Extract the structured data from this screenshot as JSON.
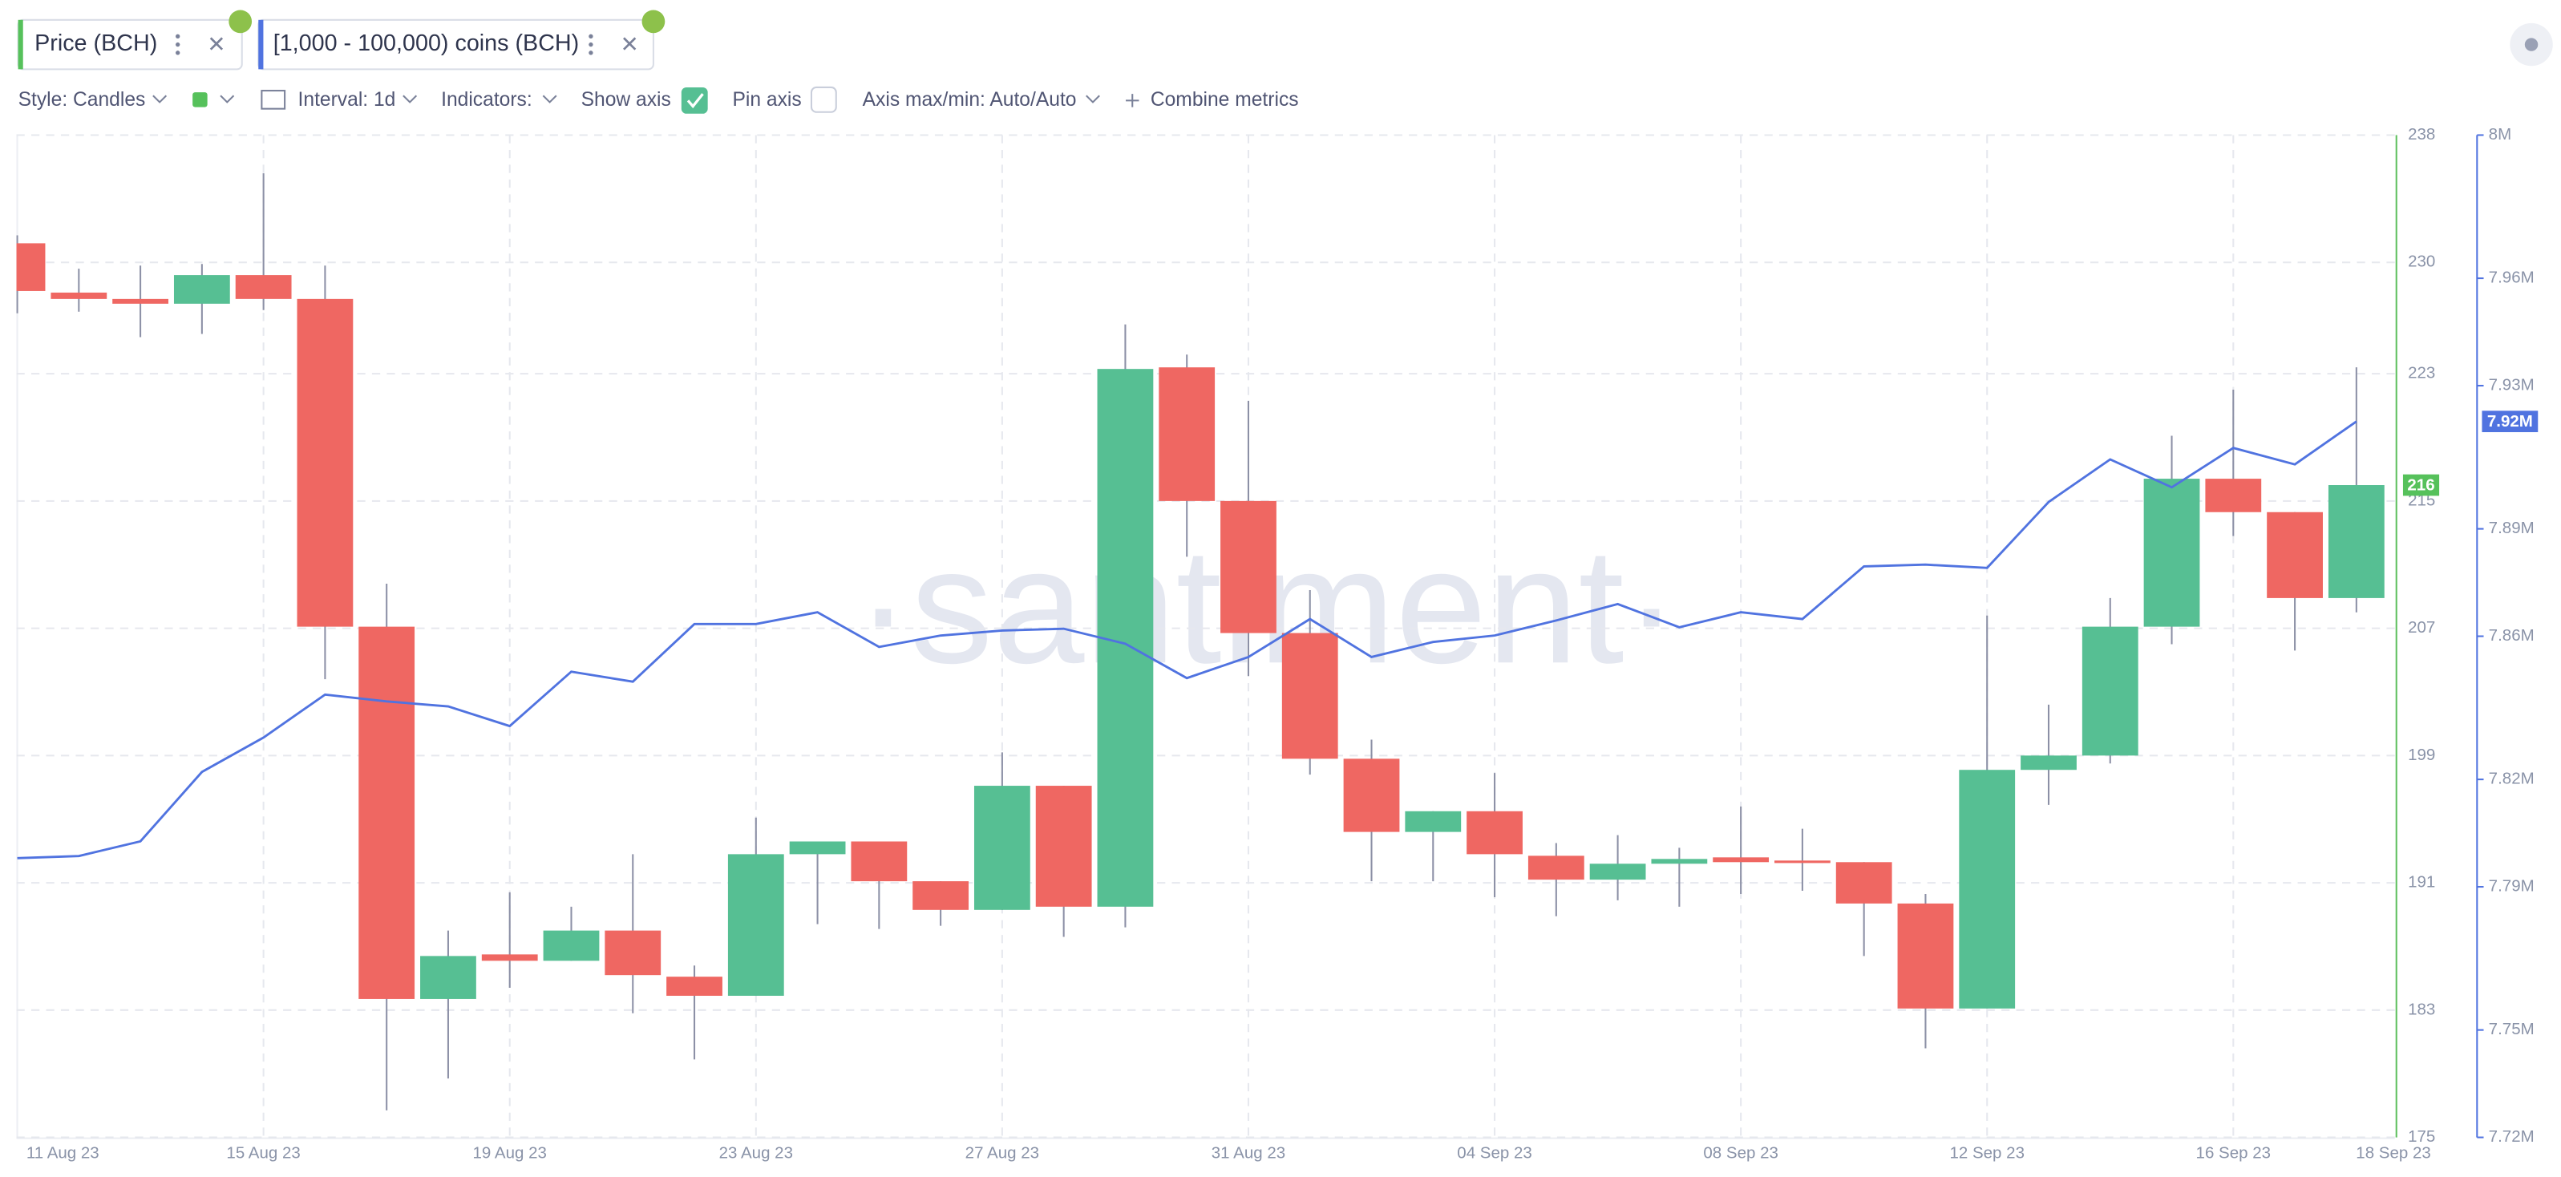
{
  "toolbar": [
    "Style: Candles",
    "Interval: 1d",
    "Indicators:",
    "Show axis",
    "Pin axis",
    "Axis max/min: Auto/Auto",
    "Combine metrics"
  ],
  "watermark": "·santiment·",
  "chart_data": {
    "type": "candlestick",
    "categories": [
      "11 Aug 23",
      null,
      null,
      null,
      "15 Aug 23",
      null,
      null,
      null,
      "19 Aug 23",
      null,
      null,
      null,
      "23 Aug 23",
      null,
      null,
      null,
      "27 Aug 23",
      null,
      null,
      null,
      "31 Aug 23",
      null,
      null,
      null,
      "04 Sep 23",
      null,
      null,
      null,
      "08 Sep 23",
      null,
      null,
      null,
      "12 Sep 23",
      null,
      null,
      null,
      "16 Sep 23",
      null,
      "18 Sep 23"
    ],
    "series": [
      {
        "name": "Price (BCH)",
        "type": "candlestick",
        "up_color": "#56bf93",
        "down_color": "#ef6762",
        "open": [
          231.2,
          228.1,
          227.7,
          227.4,
          229.2,
          227.7,
          207.1,
          183.7,
          186.5,
          186.1,
          188.0,
          185.1,
          183.9,
          192.8,
          193.6,
          191.1,
          189.3,
          197.1,
          189.5,
          223.4,
          215.0,
          206.7,
          198.8,
          194.2,
          195.5,
          192.7,
          191.2,
          192.2,
          192.6,
          192.4,
          192.3,
          189.7,
          183.1,
          198.1,
          199.0,
          207.1,
          216.4,
          214.3,
          208.9
        ],
        "high": [
          231.7,
          229.6,
          229.8,
          229.9,
          235.6,
          229.8,
          209.8,
          188.0,
          190.4,
          189.5,
          192.8,
          185.8,
          195.1,
          193.6,
          193.6,
          191.1,
          199.2,
          197.1,
          226.1,
          224.2,
          221.3,
          209.4,
          200.0,
          195.5,
          197.9,
          193.5,
          194.0,
          193.2,
          195.8,
          194.4,
          192.3,
          190.3,
          207.8,
          202.2,
          208.9,
          219.1,
          222.0,
          214.3,
          223.4
        ],
        "low": [
          226.8,
          226.9,
          225.3,
          225.5,
          227.0,
          203.8,
          176.7,
          178.7,
          184.4,
          186.1,
          182.8,
          179.9,
          183.9,
          188.4,
          188.1,
          188.3,
          189.3,
          187.6,
          188.2,
          211.5,
          204.0,
          197.8,
          191.1,
          191.1,
          190.1,
          188.9,
          189.9,
          189.5,
          190.3,
          190.5,
          186.4,
          180.6,
          183.1,
          195.9,
          198.5,
          206.0,
          212.8,
          205.6,
          208.0
        ],
        "close": [
          228.2,
          227.7,
          227.4,
          229.2,
          227.7,
          207.1,
          183.7,
          186.4,
          186.1,
          188.0,
          185.2,
          183.9,
          192.8,
          193.6,
          191.1,
          189.3,
          197.1,
          189.5,
          223.3,
          215.0,
          206.7,
          198.8,
          194.2,
          195.5,
          192.8,
          191.2,
          192.2,
          192.5,
          192.3,
          192.3,
          189.7,
          183.1,
          198.1,
          199.0,
          207.1,
          216.4,
          214.3,
          208.9,
          216
        ]
      },
      {
        "name": "[1,000 - 100,000) coins (BCH)",
        "type": "line",
        "axis": "y2",
        "color": "#5073e0",
        "values": [
          7798000,
          7798600,
          7802700,
          7822100,
          7831700,
          7843700,
          7841800,
          7840400,
          7834900,
          7850100,
          7847300,
          7863400,
          7863400,
          7866700,
          7857000,
          7860200,
          7861600,
          7862100,
          7857900,
          7848300,
          7854200,
          7864800,
          7854200,
          7858400,
          7860200,
          7864400,
          7869000,
          7862500,
          7866700,
          7864800,
          7879500,
          7880000,
          7879100,
          7897500,
          7909400,
          7901600,
          7912600,
          7908000,
          7920000
        ],
        "value_labels": [
          null,
          null,
          null,
          null,
          null,
          null,
          null,
          null,
          null,
          null,
          null,
          null,
          null,
          null,
          null,
          null,
          null,
          null,
          null,
          null,
          null,
          null,
          null,
          null,
          null,
          null,
          null,
          null,
          null,
          null,
          null,
          null,
          null,
          null,
          null,
          null,
          null,
          null,
          "7.92M"
        ]
      }
    ],
    "ylim": [
      175,
      238
    ],
    "yticks": [
      175,
      183,
      191,
      199,
      207,
      215,
      223,
      230,
      238
    ],
    "y2lim": [
      7720000,
      8000000
    ],
    "y2ticks": [
      {
        "value": 7720000,
        "label": "7.72M"
      },
      {
        "value": 7750000,
        "label": "7.75M"
      },
      {
        "value": 7790000,
        "label": "7.79M"
      },
      {
        "value": 7820000,
        "label": "7.82M"
      },
      {
        "value": 7860000,
        "label": "7.86M"
      },
      {
        "value": 7890000,
        "label": "7.89M"
      },
      {
        "value": 7930000,
        "label": "7.93M"
      },
      {
        "value": 7960000,
        "label": "7.96M"
      },
      {
        "value": 8000000,
        "label": "8M"
      }
    ],
    "grid": true
  }
}
